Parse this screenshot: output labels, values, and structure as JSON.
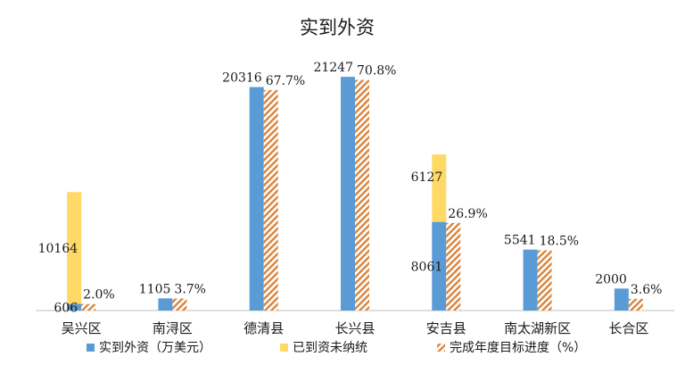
{
  "chart_data": {
    "type": "bar",
    "title": "实到外资",
    "categories": [
      "吴兴区",
      "南浔区",
      "德清县",
      "长兴县",
      "安吉县",
      "南太湖新区",
      "长合区"
    ],
    "series": [
      {
        "name": "实到外资（万美元）",
        "color": "#5B9BD5",
        "stack": "amount",
        "values": [
          606,
          1105,
          20316,
          21247,
          8061,
          5541,
          2000
        ]
      },
      {
        "name": "已到资未纳统",
        "color": "#FFD966",
        "stack": "amount",
        "values": [
          10164,
          null,
          null,
          null,
          6127,
          null,
          null
        ]
      },
      {
        "name": "完成年度目标进度（%）",
        "color": "#D9843B",
        "pattern": "diagonal-hatch",
        "values": [
          2.0,
          3.7,
          67.7,
          70.8,
          26.9,
          18.5,
          3.6
        ],
        "labels": [
          "2.0%",
          "3.7%",
          "67.7%",
          "70.8%",
          "26.9%",
          "18.5%",
          "3.6%"
        ]
      }
    ],
    "amount_labels": [
      "606",
      "1105",
      "20316",
      "21247",
      "8061",
      "5541",
      "2000"
    ],
    "unreported_labels": [
      "10164",
      "",
      "",
      "",
      "6127",
      "",
      ""
    ],
    "legend_position": "bottom",
    "grid": false
  }
}
